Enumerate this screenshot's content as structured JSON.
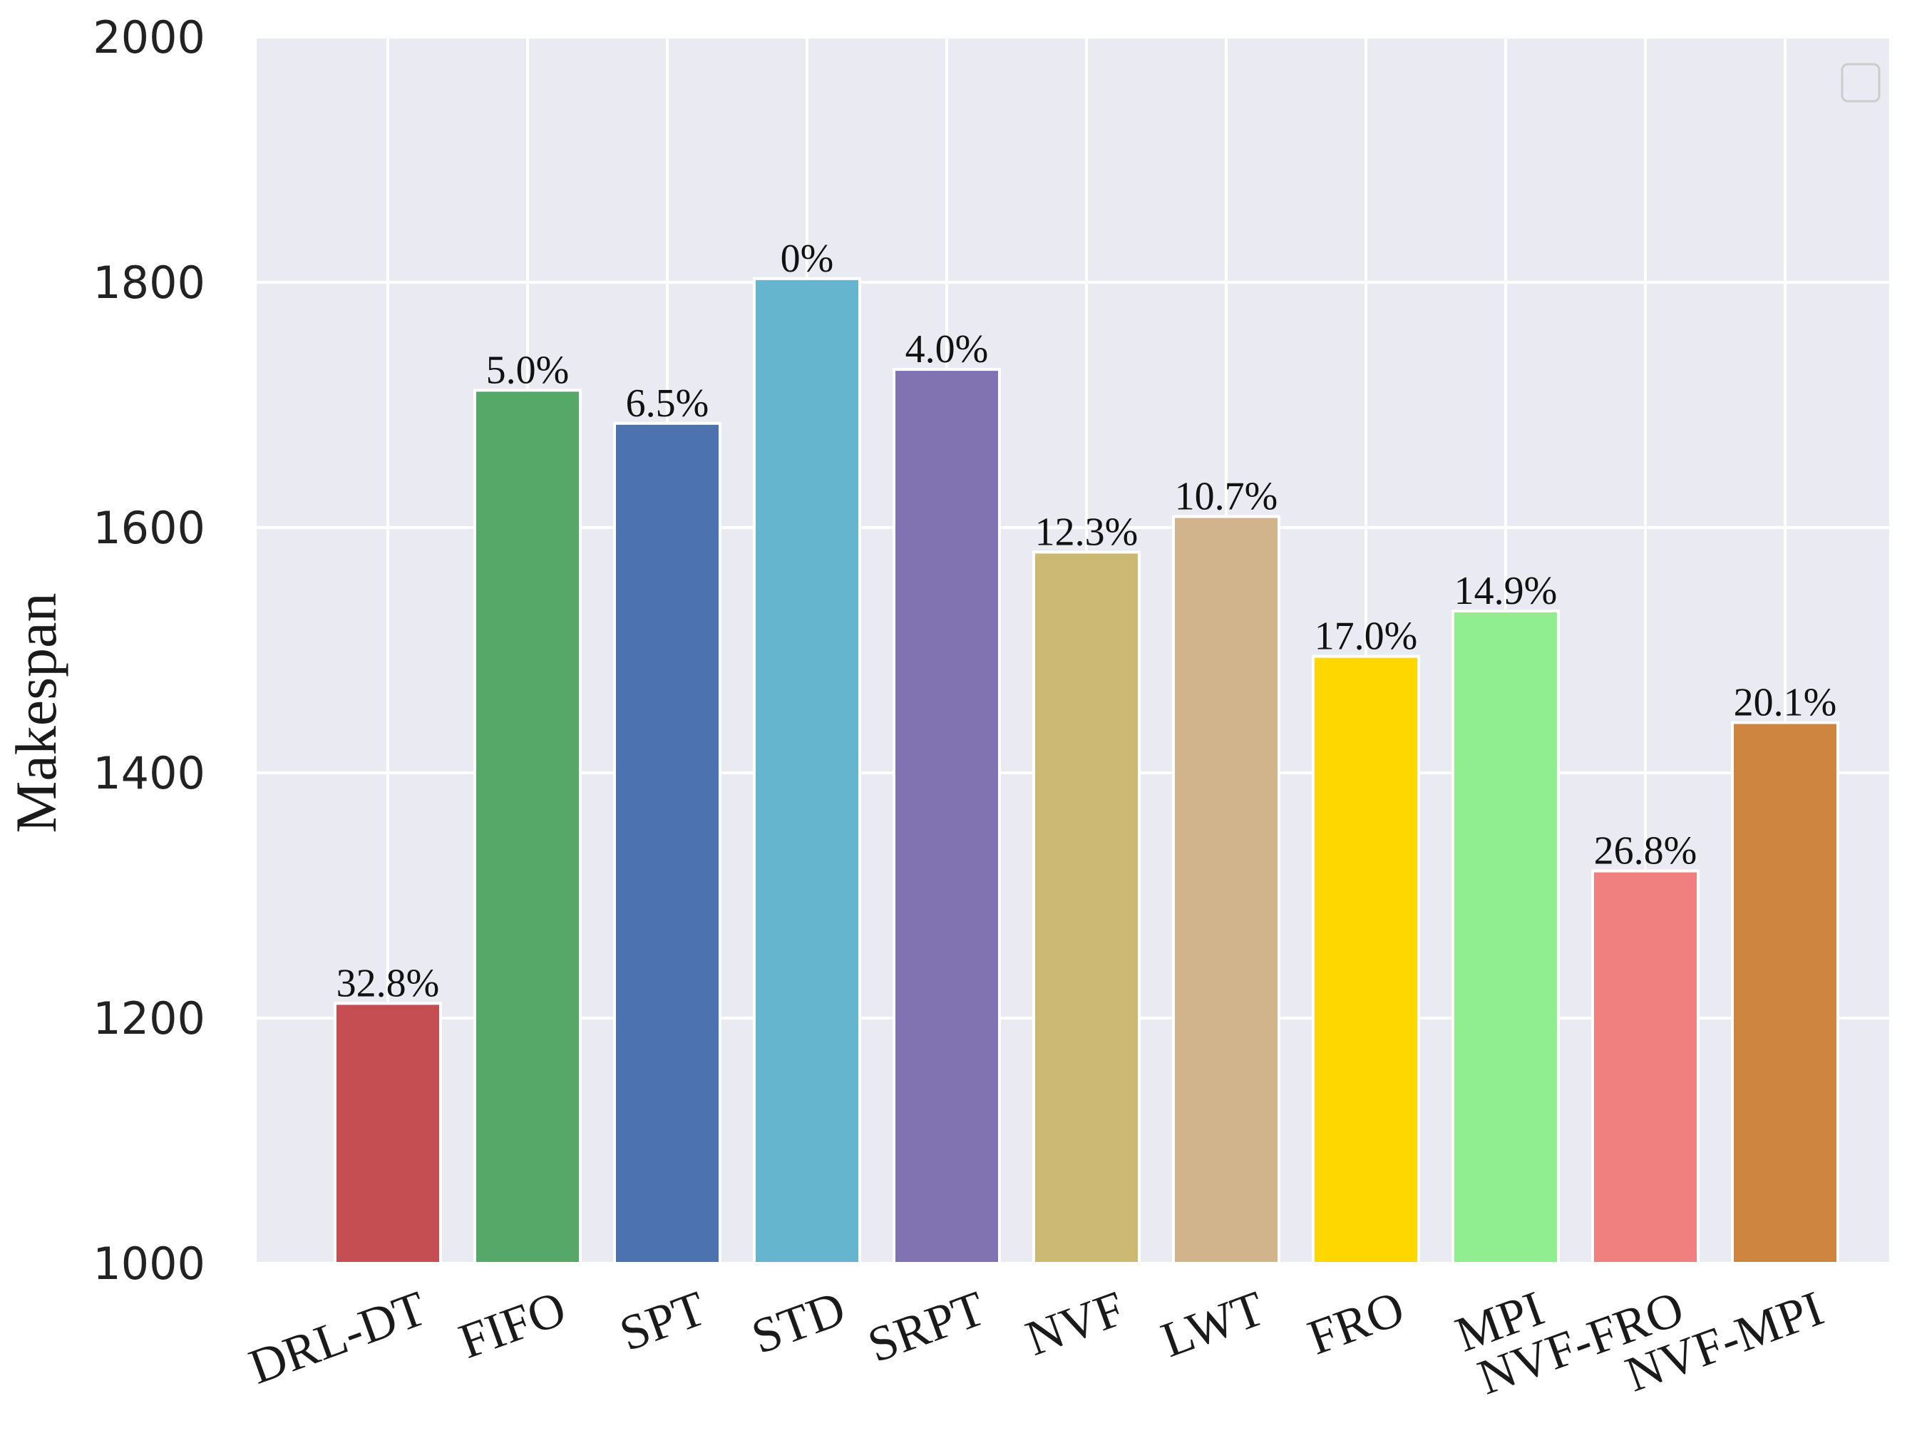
{
  "chart_data": {
    "type": "bar",
    "title": "",
    "xlabel": "",
    "ylabel": "Makespan",
    "ylim": [
      1000,
      2000
    ],
    "yticks": [
      1000,
      1200,
      1400,
      1600,
      1800,
      2000
    ],
    "grid": true,
    "legend": "top-right (empty)",
    "categories": [
      "DRL-DT",
      "FIFO",
      "SPT",
      "STD",
      "SRPT",
      "NVF",
      "LWT",
      "FRO",
      "MPI",
      "NVF-FRO",
      "NVF-MPI"
    ],
    "values": [
      1212,
      1712,
      1685,
      1803,
      1729,
      1580,
      1609,
      1495,
      1532,
      1320,
      1441
    ],
    "labels": [
      "32.8%",
      "5.0%",
      "6.5%",
      "0%",
      "4.0%",
      "12.3%",
      "10.7%",
      "17.0%",
      "14.9%",
      "26.8%",
      "20.1%"
    ],
    "colors": [
      "#c44e52",
      "#55a868",
      "#4c72b0",
      "#64b5cd",
      "#8172b2",
      "#ccb974",
      "#d2b48c",
      "#ffd700",
      "#90ee90",
      "#f08080",
      "#cd853f"
    ]
  }
}
